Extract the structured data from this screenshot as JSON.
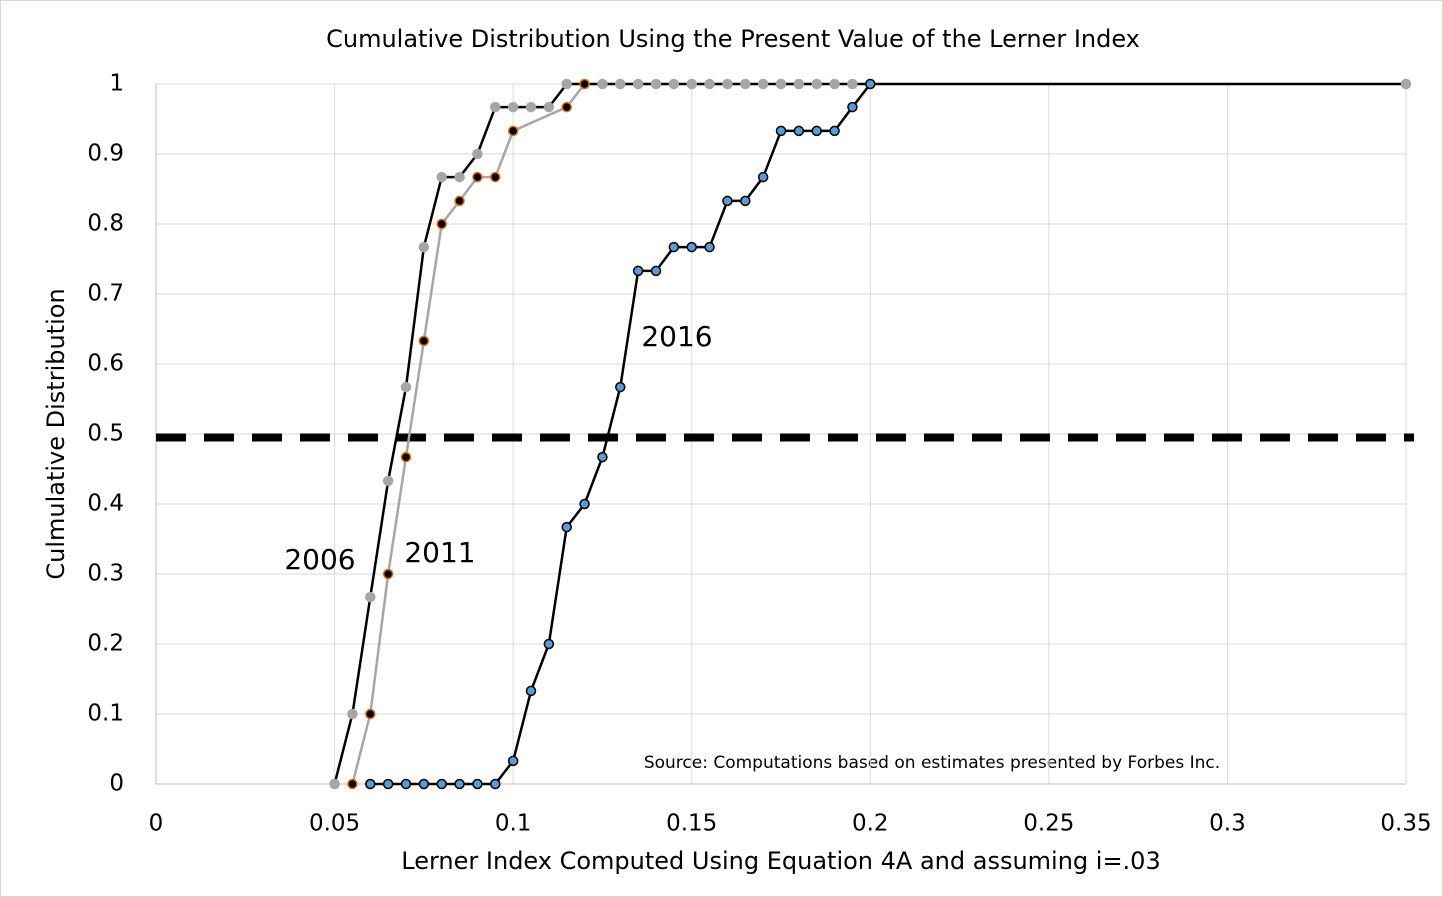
{
  "chart_data": {
    "type": "line",
    "title": "Cumulative Distribution Using the Present Value of the Lerner Index",
    "x_label": "Lerner Index Computed Using Equation 4A and assuming i=.03",
    "y_label": "Culmulative Distribution",
    "source": "Source: Computations based on estimates presented by Forbes Inc.",
    "xlim": [
      0,
      0.35
    ],
    "xticks": [
      0,
      0.05,
      0.1,
      0.15,
      0.2,
      0.25,
      0.3,
      0.35
    ],
    "ylim": [
      0,
      1
    ],
    "yticks": [
      0,
      0.1,
      0.2,
      0.3,
      0.4,
      0.5,
      0.6,
      0.7,
      0.8,
      0.9,
      1
    ],
    "grid": true,
    "hline": 0.495,
    "series": [
      {
        "name": "2006",
        "color": "#000000",
        "marker_color": "#a6a6a6",
        "marker_edge": "#a6a6a6",
        "x": [
          0.05,
          0.055,
          0.06,
          0.065,
          0.07,
          0.075,
          0.08,
          0.085,
          0.09,
          0.095,
          0.1,
          0.105,
          0.11,
          0.115,
          0.12,
          0.125,
          0.13,
          0.135,
          0.14,
          0.145,
          0.15,
          0.155,
          0.16,
          0.165,
          0.17,
          0.175,
          0.18,
          0.185,
          0.19,
          0.195,
          0.2,
          0.35
        ],
        "values": [
          0,
          0.1,
          0.267,
          0.433,
          0.567,
          0.767,
          0.867,
          0.867,
          0.9,
          0.967,
          0.967,
          0.967,
          0.967,
          1,
          1,
          1,
          1,
          1,
          1,
          1,
          1,
          1,
          1,
          1,
          1,
          1,
          1,
          1,
          1,
          1,
          1,
          1
        ]
      },
      {
        "name": "2011",
        "color": "#a6a6a6",
        "marker_color": "#000000",
        "marker_edge": "#e46c0a",
        "x": [
          0.055,
          0.06,
          0.065,
          0.07,
          0.075,
          0.08,
          0.085,
          0.09,
          0.095,
          0.1,
          0.115,
          0.12
        ],
        "values": [
          0,
          0.1,
          0.3,
          0.467,
          0.633,
          0.8,
          0.833,
          0.867,
          0.867,
          0.933,
          0.967,
          1
        ]
      },
      {
        "name": "2016",
        "color": "#000000",
        "marker_color": "#5b9bd5",
        "marker_edge": "#000000",
        "x": [
          0.06,
          0.065,
          0.07,
          0.075,
          0.08,
          0.085,
          0.09,
          0.095,
          0.1,
          0.105,
          0.11,
          0.115,
          0.12,
          0.125,
          0.13,
          0.135,
          0.14,
          0.145,
          0.15,
          0.155,
          0.16,
          0.165,
          0.17,
          0.175,
          0.18,
          0.185,
          0.19,
          0.195,
          0.2
        ],
        "values": [
          0,
          0,
          0,
          0,
          0,
          0,
          0,
          0,
          0.033,
          0.133,
          0.2,
          0.367,
          0.4,
          0.467,
          0.567,
          0.733,
          0.733,
          0.767,
          0.767,
          0.767,
          0.833,
          0.833,
          0.867,
          0.933,
          0.933,
          0.933,
          0.933,
          0.967,
          1
        ]
      }
    ]
  }
}
